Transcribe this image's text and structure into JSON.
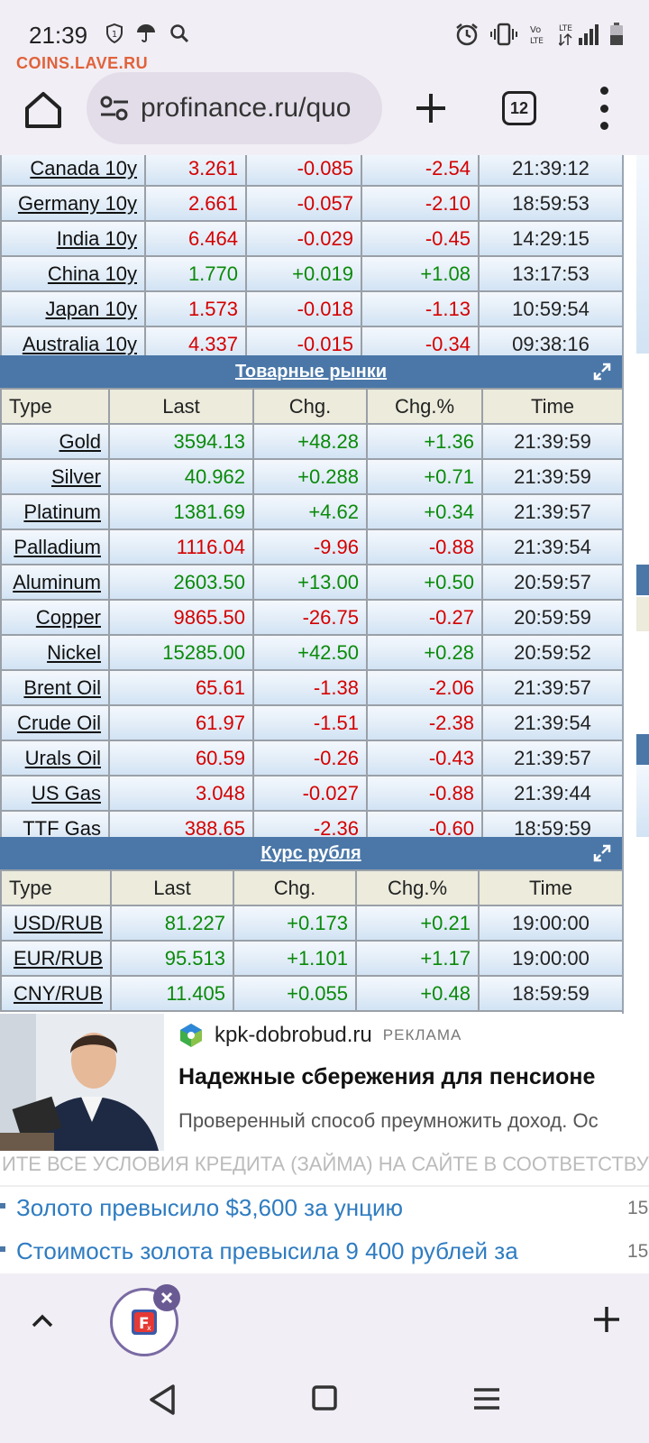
{
  "status_bar": {
    "time": "21:39",
    "icons_left": [
      "shield-one-icon",
      "umbrella-icon",
      "search-icon"
    ],
    "icons_right": [
      "alarm-icon",
      "vibrate-icon",
      "volte-icon",
      "lte-signal-icon",
      "battery-icon"
    ],
    "volte_text": "Vo LTE",
    "lte_text": "LTE"
  },
  "watermark": "COINS.LAVE.RU",
  "browser": {
    "url": "profinance.ru/quo",
    "tabs_count": "12"
  },
  "bonds": {
    "rows": [
      {
        "type": "Canada 10y",
        "last": "3.261",
        "chg": "-0.085",
        "chg_pct": "-2.54",
        "time": "21:39:12",
        "dir": "down"
      },
      {
        "type": "Germany 10y",
        "last": "2.661",
        "chg": "-0.057",
        "chg_pct": "-2.10",
        "time": "18:59:53",
        "dir": "down"
      },
      {
        "type": "India 10y",
        "last": "6.464",
        "chg": "-0.029",
        "chg_pct": "-0.45",
        "time": "14:29:15",
        "dir": "down"
      },
      {
        "type": "China 10y",
        "last": "1.770",
        "chg": "+0.019",
        "chg_pct": "+1.08",
        "time": "13:17:53",
        "dir": "up"
      },
      {
        "type": "Japan 10y",
        "last": "1.573",
        "chg": "-0.018",
        "chg_pct": "-1.13",
        "time": "10:59:54",
        "dir": "down"
      },
      {
        "type": "Australia 10y",
        "last": "4.337",
        "chg": "-0.015",
        "chg_pct": "-0.34",
        "time": "09:38:16",
        "dir": "down"
      }
    ]
  },
  "commodities": {
    "title": "Товарные рынки",
    "headers": {
      "type": "Type",
      "last": "Last",
      "chg": "Chg.",
      "chg_pct": "Chg.%",
      "time": "Time"
    },
    "rows": [
      {
        "type": "Gold",
        "last": "3594.13",
        "chg": "+48.28",
        "chg_pct": "+1.36",
        "time": "21:39:59",
        "dir": "up"
      },
      {
        "type": "Silver",
        "last": "40.962",
        "chg": "+0.288",
        "chg_pct": "+0.71",
        "time": "21:39:59",
        "dir": "up"
      },
      {
        "type": "Platinum",
        "last": "1381.69",
        "chg": "+4.62",
        "chg_pct": "+0.34",
        "time": "21:39:57",
        "dir": "up"
      },
      {
        "type": "Palladium",
        "last": "1116.04",
        "chg": "-9.96",
        "chg_pct": "-0.88",
        "time": "21:39:54",
        "dir": "down"
      },
      {
        "type": "Aluminum",
        "last": "2603.50",
        "chg": "+13.00",
        "chg_pct": "+0.50",
        "time": "20:59:57",
        "dir": "up"
      },
      {
        "type": "Copper",
        "last": "9865.50",
        "chg": "-26.75",
        "chg_pct": "-0.27",
        "time": "20:59:59",
        "dir": "down"
      },
      {
        "type": "Nickel",
        "last": "15285.00",
        "chg": "+42.50",
        "chg_pct": "+0.28",
        "time": "20:59:52",
        "dir": "up"
      },
      {
        "type": "Brent Oil",
        "last": "65.61",
        "chg": "-1.38",
        "chg_pct": "-2.06",
        "time": "21:39:57",
        "dir": "down"
      },
      {
        "type": "Crude Oil",
        "last": "61.97",
        "chg": "-1.51",
        "chg_pct": "-2.38",
        "time": "21:39:54",
        "dir": "down"
      },
      {
        "type": "Urals Oil",
        "last": "60.59",
        "chg": "-0.26",
        "chg_pct": "-0.43",
        "time": "21:39:57",
        "dir": "down"
      },
      {
        "type": "US Gas",
        "last": "3.048",
        "chg": "-0.027",
        "chg_pct": "-0.88",
        "time": "21:39:44",
        "dir": "down"
      },
      {
        "type": "TTF Gas",
        "last": "388.65",
        "chg": "-2.36",
        "chg_pct": "-0.60",
        "time": "18:59:59",
        "dir": "down"
      }
    ]
  },
  "ruble": {
    "title": "Курс рубля",
    "headers": {
      "type": "Type",
      "last": "Last",
      "chg": "Chg.",
      "chg_pct": "Chg.%",
      "time": "Time"
    },
    "rows": [
      {
        "type": "USD/RUB",
        "last": "81.227",
        "chg": "+0.173",
        "chg_pct": "+0.21",
        "time": "19:00:00",
        "dir": "up"
      },
      {
        "type": "EUR/RUB",
        "last": "95.513",
        "chg": "+1.101",
        "chg_pct": "+1.17",
        "time": "19:00:00",
        "dir": "up"
      },
      {
        "type": "CNY/RUB",
        "last": "11.405",
        "chg": "+0.055",
        "chg_pct": "+0.48",
        "time": "18:59:59",
        "dir": "up"
      }
    ]
  },
  "ad": {
    "domain": "kpk-dobrobud.ru",
    "label": "РЕКЛАМА",
    "title": "Надежные сбережения для пенсионе",
    "description": "Проверенный способ преумножить доход. Ос",
    "disclaimer": "ИТЕ ВСЕ УСЛОВИЯ КРЕДИТА (ЗАЙМА) НА САЙТЕ В СООТВЕТСТВУЮЩЕМ"
  },
  "news": [
    {
      "title": "Золото превысило $3,600 за унцию",
      "time": "15"
    },
    {
      "title": "Стоимость золота превысила 9 400 рублей за",
      "time": "15"
    }
  ],
  "colors": {
    "up": "#0a8a0a",
    "down": "#d40000",
    "section_bar": "#4a77a8",
    "header_row": "#ecebdc",
    "link": "#2f7cc1"
  }
}
